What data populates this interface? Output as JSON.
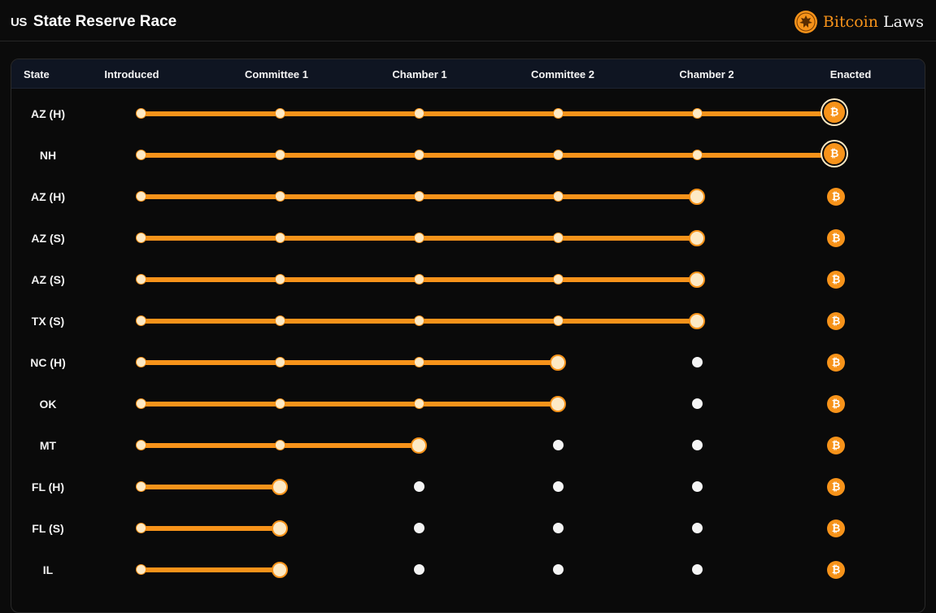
{
  "header": {
    "flag_label": "US",
    "title": "State Reserve Race",
    "brand_part1": "Bitcoin",
    "brand_part2": " Laws"
  },
  "table": {
    "columns": [
      "State",
      "Introduced",
      "Committee 1",
      "Chamber 1",
      "Committee 2",
      "Chamber 2",
      "Enacted"
    ],
    "bitcoin_symbol": "₿",
    "rows": [
      {
        "state": "AZ  (H)",
        "stage": 6
      },
      {
        "state": "NH",
        "stage": 6
      },
      {
        "state": "AZ  (H)",
        "stage": 5
      },
      {
        "state": "AZ  (S)",
        "stage": 5
      },
      {
        "state": "AZ  (S)",
        "stage": 5
      },
      {
        "state": "TX  (S)",
        "stage": 5
      },
      {
        "state": "NC  (H)",
        "stage": 4
      },
      {
        "state": "OK",
        "stage": 4
      },
      {
        "state": "MT",
        "stage": 3
      },
      {
        "state": "FL  (H)",
        "stage": 2
      },
      {
        "state": "FL  (S)",
        "stage": 2
      },
      {
        "state": "IL",
        "stage": 2
      }
    ]
  },
  "colors": {
    "accent": "#f7931a",
    "done_fill": "#fde9c4",
    "todo_fill": "#f4f4f4",
    "background": "#0b0b0b",
    "header_row": "#0f1522"
  },
  "icons": {
    "brand": "eagle-seal-icon",
    "stage_end": "bitcoin-icon"
  }
}
